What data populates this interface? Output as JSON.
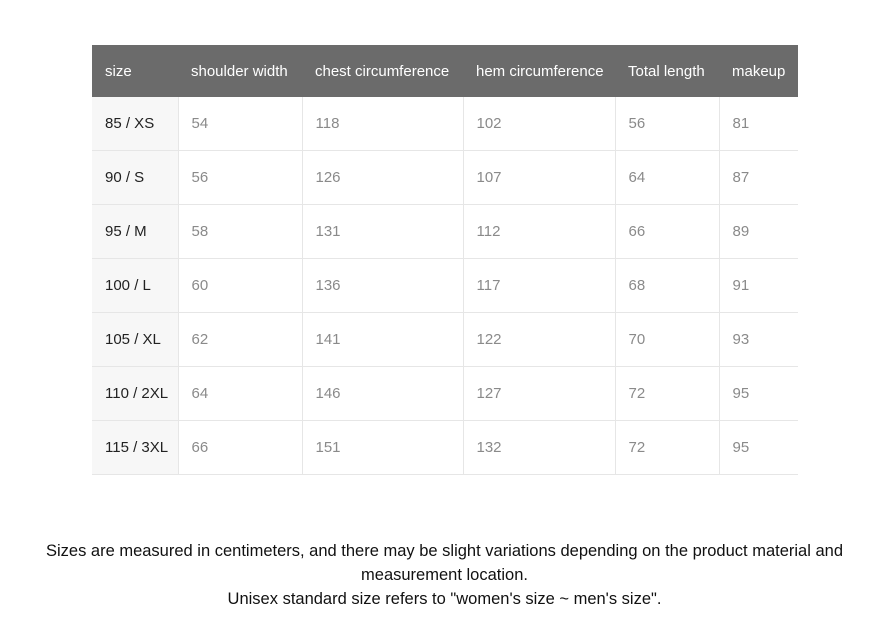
{
  "table": {
    "header": [
      "size",
      "shoulder width",
      "chest circumference",
      "hem circumference",
      "Total length",
      "makeup"
    ],
    "rows": [
      [
        "85 / XS",
        54,
        118,
        102,
        56,
        81
      ],
      [
        "90 / S",
        56,
        126,
        107,
        64,
        87
      ],
      [
        "95 / M",
        58,
        131,
        112,
        66,
        89
      ],
      [
        "100 / L",
        60,
        136,
        117,
        68,
        91
      ],
      [
        "105 / XL",
        62,
        141,
        122,
        70,
        93
      ],
      [
        "110 / 2XL",
        64,
        146,
        127,
        72,
        95
      ],
      [
        "115 / 3XL",
        66,
        151,
        132,
        72,
        95
      ]
    ]
  },
  "notes": [
    "Sizes are measured in centimeters, and there may be slight variations depending on the product material and measurement location.",
    "Unisex standard size refers to \"women's size ~ men's size\"."
  ]
}
